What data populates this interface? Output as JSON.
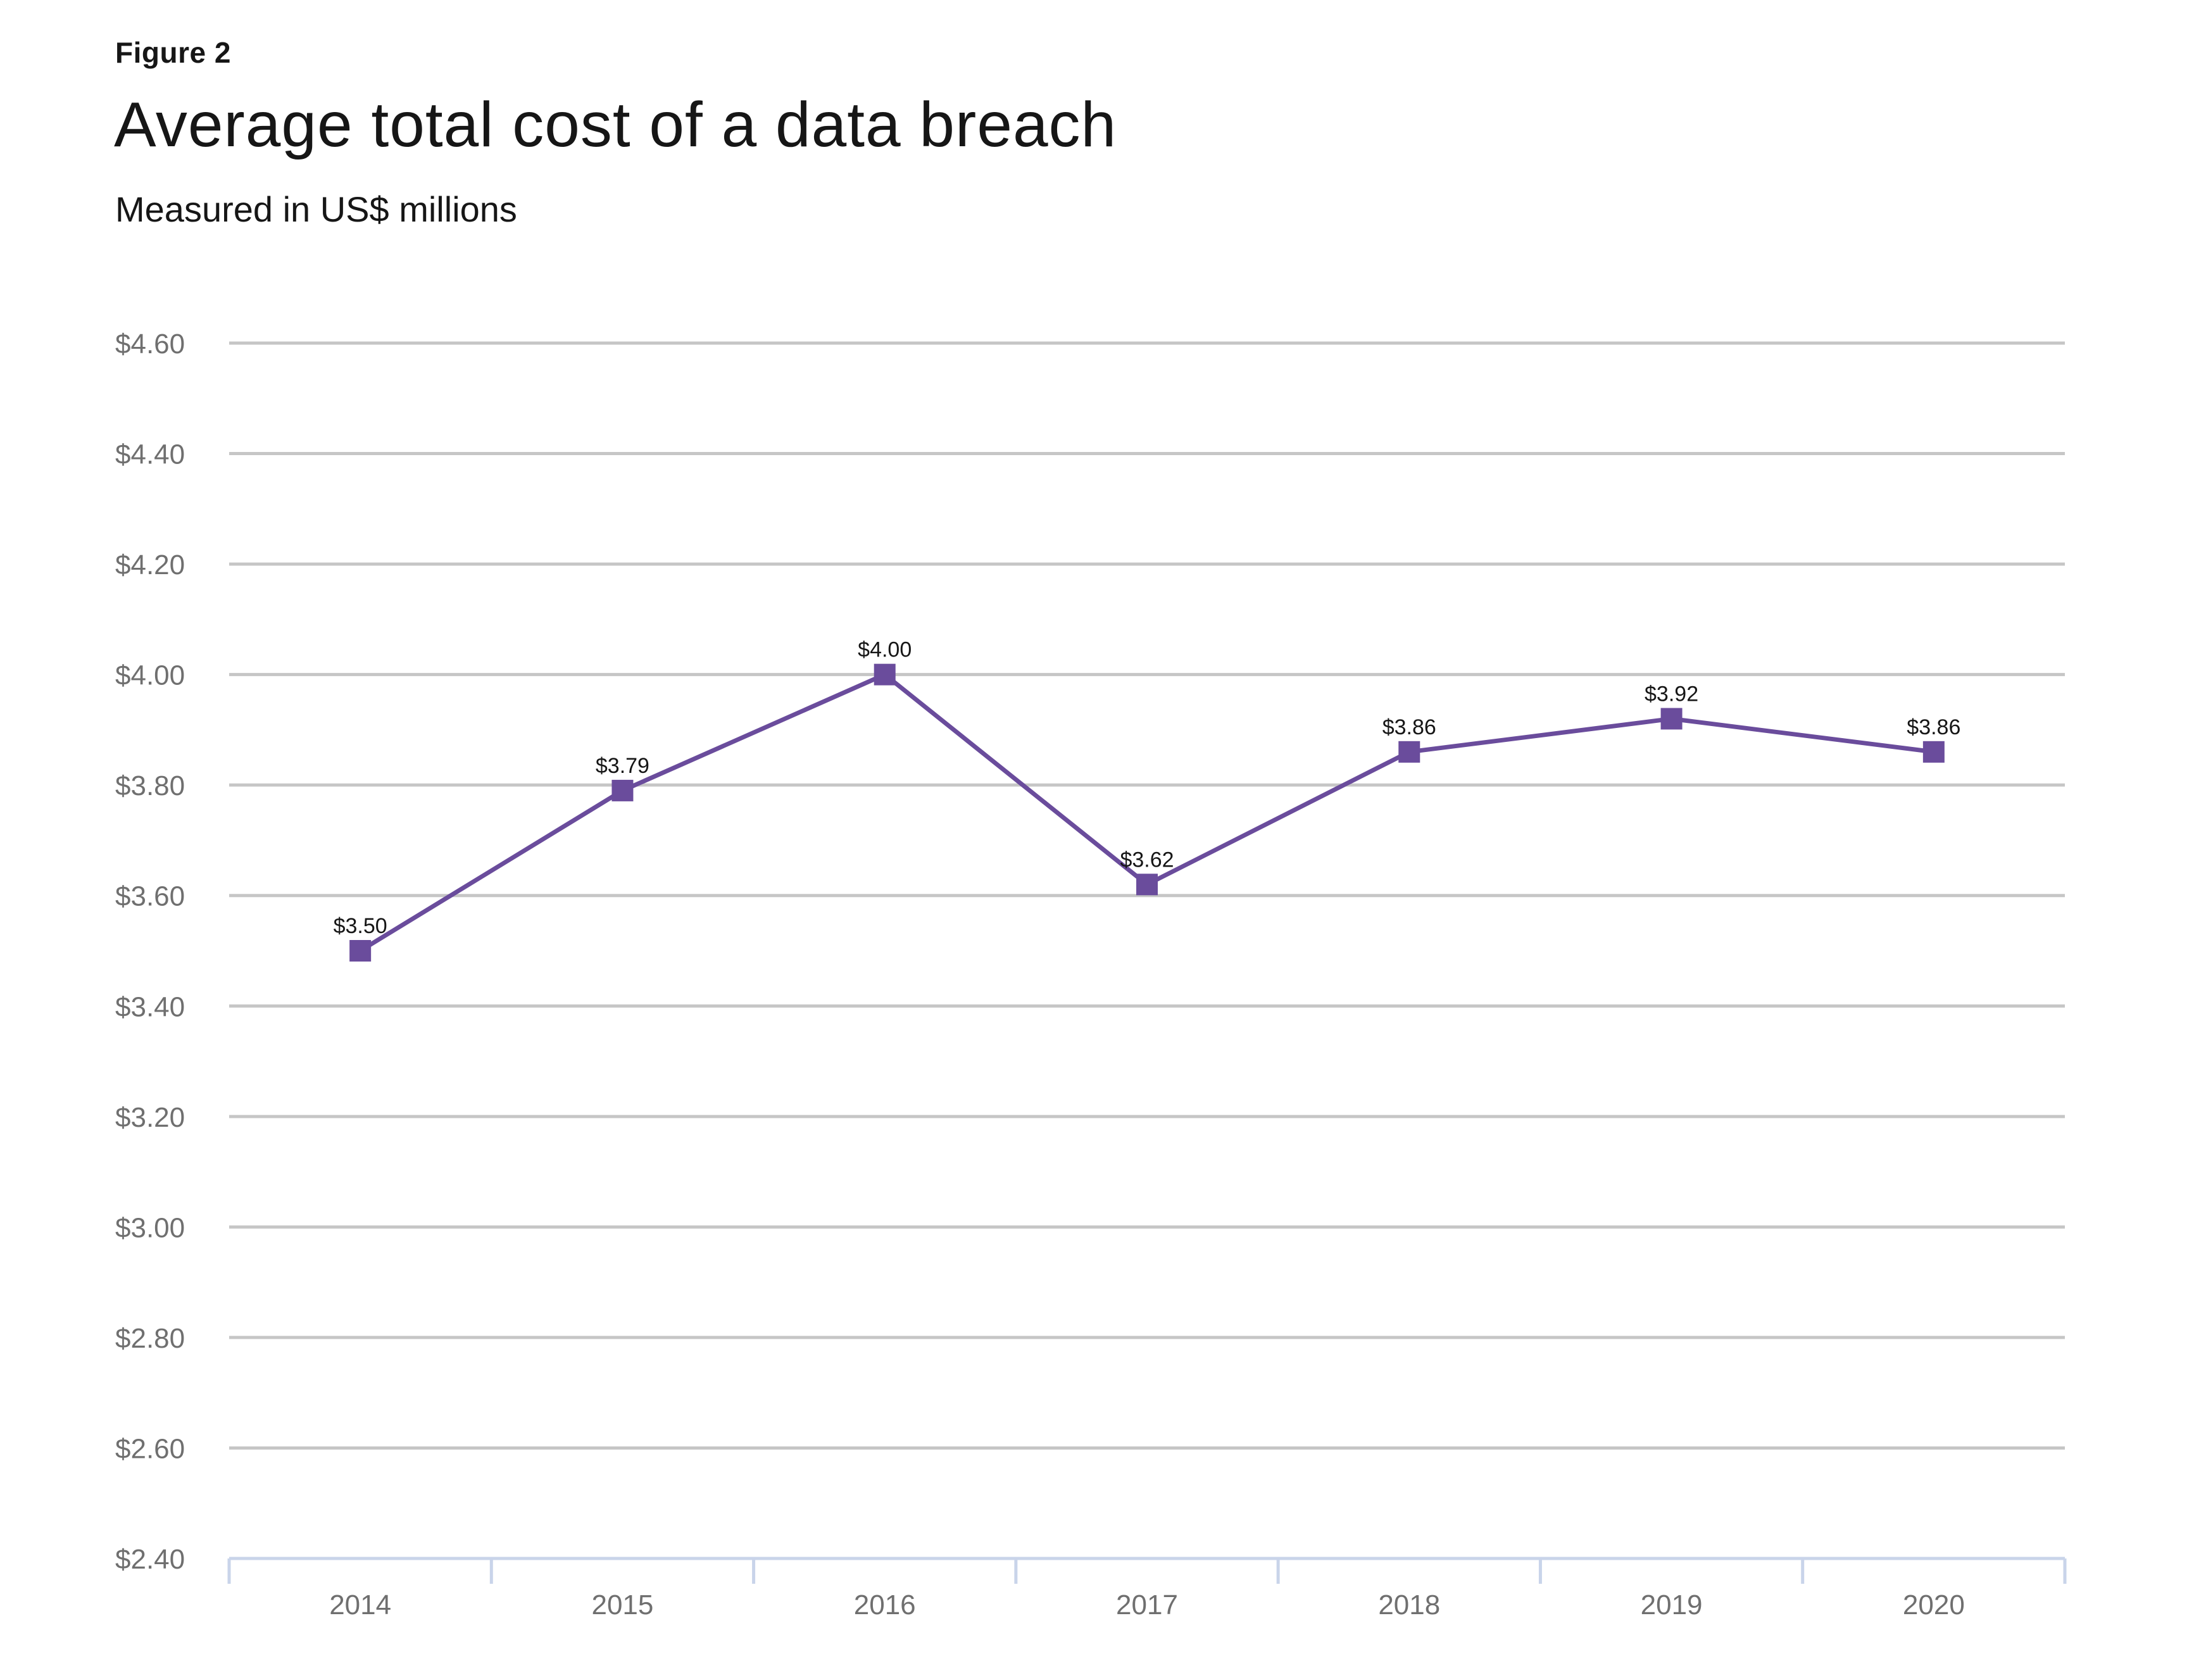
{
  "figure_label": "Figure 2",
  "chart_data": {
    "type": "line",
    "title": "Average total cost of a data breach",
    "subtitle": "Measured in US$ millions",
    "xlabel": "",
    "ylabel": "",
    "categories": [
      "2014",
      "2015",
      "2016",
      "2017",
      "2018",
      "2019",
      "2020"
    ],
    "series": [
      {
        "values": [
          3.5,
          3.79,
          4.0,
          3.62,
          3.86,
          3.92,
          3.86
        ],
        "data_labels": [
          "$3.50",
          "$3.79",
          "$4.00",
          "$3.62",
          "$3.86",
          "$3.92",
          "$3.86"
        ],
        "color": "#6a4c9c",
        "marker": "square"
      }
    ],
    "ylim": [
      2.4,
      4.6
    ],
    "y_ticks": [
      2.4,
      2.6,
      2.8,
      3.0,
      3.2,
      3.4,
      3.6,
      3.8,
      4.0,
      4.2,
      4.4,
      4.6
    ],
    "y_tick_labels": [
      "$2.40",
      "$2.60",
      "$2.80",
      "$3.00",
      "$3.20",
      "$3.40",
      "$3.60",
      "$3.80",
      "$4.00",
      "$4.20",
      "$4.40",
      "$4.60"
    ],
    "grid": true,
    "legend": "none",
    "colors": {
      "line": "#6a4c9c",
      "grid": "#c6c6c6",
      "axis": "#c9d4ea",
      "tick_text": "#6f6f6f",
      "label_text": "#161616"
    }
  }
}
